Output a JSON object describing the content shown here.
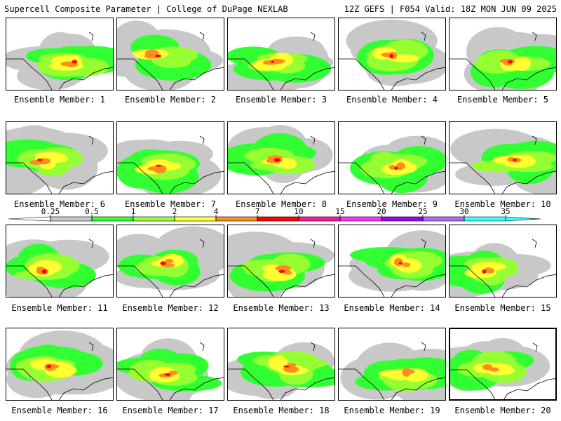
{
  "header": {
    "title_left": "Supercell Composite Parameter | College of DuPage NEXLAB",
    "title_right": "12Z GEFS | F054 Valid: 18Z MON JUN 09 2025"
  },
  "members": [
    {
      "label": "Ensemble Member: 1",
      "max_level": 5
    },
    {
      "label": "Ensemble Member: 2",
      "max_level": 6
    },
    {
      "label": "Ensemble Member: 3",
      "max_level": 6
    },
    {
      "label": "Ensemble Member: 4",
      "max_level": 6
    },
    {
      "label": "Ensemble Member: 5",
      "max_level": 6
    },
    {
      "label": "Ensemble Member: 6",
      "max_level": 6
    },
    {
      "label": "Ensemble Member: 7",
      "max_level": 5
    },
    {
      "label": "Ensemble Member: 8",
      "max_level": 6
    },
    {
      "label": "Ensemble Member: 9",
      "max_level": 5
    },
    {
      "label": "Ensemble Member: 10",
      "max_level": 5
    },
    {
      "label": "Ensemble Member: 11",
      "max_level": 5
    },
    {
      "label": "Ensemble Member: 12",
      "max_level": 6
    },
    {
      "label": "Ensemble Member: 13",
      "max_level": 6
    },
    {
      "label": "Ensemble Member: 14",
      "max_level": 7
    },
    {
      "label": "Ensemble Member: 15",
      "max_level": 6
    },
    {
      "label": "Ensemble Member: 16",
      "max_level": 6
    },
    {
      "label": "Ensemble Member: 17",
      "max_level": 5
    },
    {
      "label": "Ensemble Member: 18",
      "max_level": 6
    },
    {
      "label": "Ensemble Member: 19",
      "max_level": 4
    },
    {
      "label": "Ensemble Member: 20",
      "max_level": 4
    }
  ],
  "colorbar": {
    "ticks": [
      "0.25",
      "0.5",
      "1",
      "2",
      "4",
      "7",
      "10",
      "15",
      "20",
      "25",
      "30",
      "35"
    ],
    "colors": [
      "#c8c8c8",
      "#32ff32",
      "#96ff32",
      "#ffff32",
      "#ff8c1e",
      "#ff0000",
      "#ff1493",
      "#ff32ff",
      "#9600ff",
      "#b464ff",
      "#32ffff"
    ]
  }
}
